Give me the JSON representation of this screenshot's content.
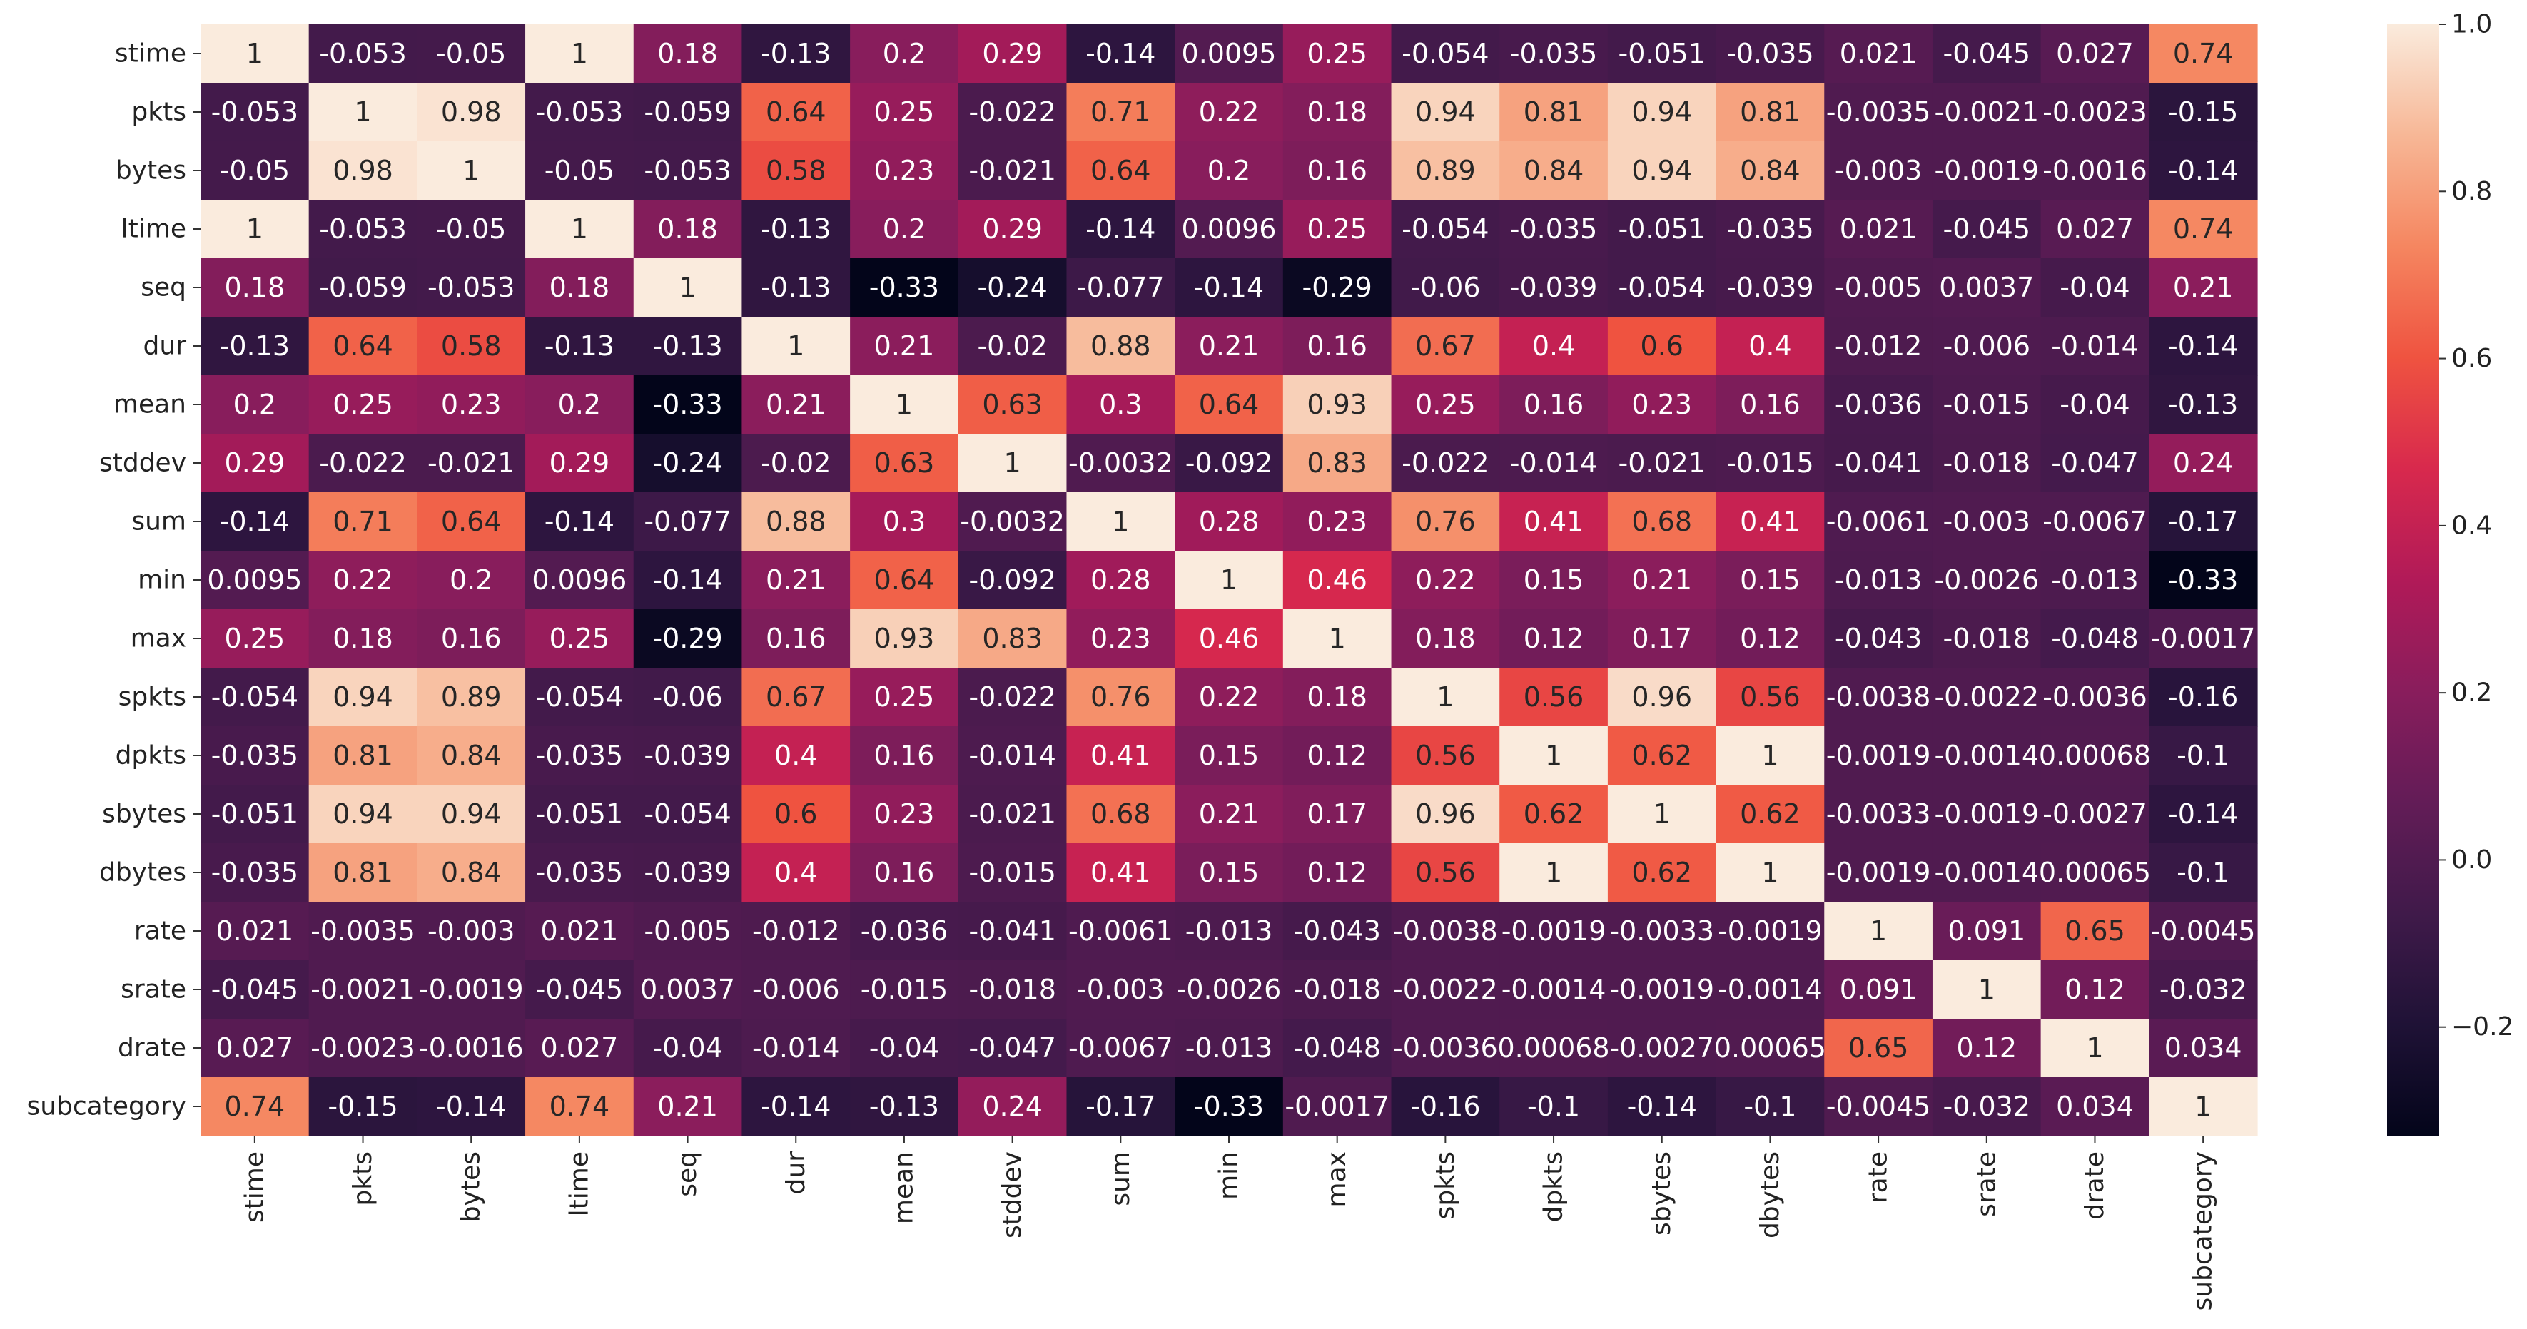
{
  "chart_data": {
    "type": "heatmap",
    "title": "",
    "xlabel": "",
    "ylabel": "",
    "colormap": "rocket",
    "value_range": [
      -0.33,
      1.0
    ],
    "labels": [
      "stime",
      "pkts",
      "bytes",
      "ltime",
      "seq",
      "dur",
      "mean",
      "stddev",
      "sum",
      "min",
      "max",
      "spkts",
      "dpkts",
      "sbytes",
      "dbytes",
      "rate",
      "srate",
      "drate",
      "subcategory"
    ],
    "matrix": [
      [
        "1",
        "-0.053",
        "-0.05",
        "1",
        "0.18",
        "-0.13",
        "0.2",
        "0.29",
        "-0.14",
        "0.0095",
        "0.25",
        "-0.054",
        "-0.035",
        "-0.051",
        "-0.035",
        "0.021",
        "-0.045",
        "0.027",
        "0.74"
      ],
      [
        "-0.053",
        "1",
        "0.98",
        "-0.053",
        "-0.059",
        "0.64",
        "0.25",
        "-0.022",
        "0.71",
        "0.22",
        "0.18",
        "0.94",
        "0.81",
        "0.94",
        "0.81",
        "-0.0035",
        "-0.0021",
        "-0.0023",
        "-0.15"
      ],
      [
        "-0.05",
        "0.98",
        "1",
        "-0.05",
        "-0.053",
        "0.58",
        "0.23",
        "-0.021",
        "0.64",
        "0.2",
        "0.16",
        "0.89",
        "0.84",
        "0.94",
        "0.84",
        "-0.003",
        "-0.0019",
        "-0.0016",
        "-0.14"
      ],
      [
        "1",
        "-0.053",
        "-0.05",
        "1",
        "0.18",
        "-0.13",
        "0.2",
        "0.29",
        "-0.14",
        "0.0096",
        "0.25",
        "-0.054",
        "-0.035",
        "-0.051",
        "-0.035",
        "0.021",
        "-0.045",
        "0.027",
        "0.74"
      ],
      [
        "0.18",
        "-0.059",
        "-0.053",
        "0.18",
        "1",
        "-0.13",
        "-0.33",
        "-0.24",
        "-0.077",
        "-0.14",
        "-0.29",
        "-0.06",
        "-0.039",
        "-0.054",
        "-0.039",
        "-0.005",
        "0.0037",
        "-0.04",
        "0.21"
      ],
      [
        "-0.13",
        "0.64",
        "0.58",
        "-0.13",
        "-0.13",
        "1",
        "0.21",
        "-0.02",
        "0.88",
        "0.21",
        "0.16",
        "0.67",
        "0.4",
        "0.6",
        "0.4",
        "-0.012",
        "-0.006",
        "-0.014",
        "-0.14"
      ],
      [
        "0.2",
        "0.25",
        "0.23",
        "0.2",
        "-0.33",
        "0.21",
        "1",
        "0.63",
        "0.3",
        "0.64",
        "0.93",
        "0.25",
        "0.16",
        "0.23",
        "0.16",
        "-0.036",
        "-0.015",
        "-0.04",
        "-0.13"
      ],
      [
        "0.29",
        "-0.022",
        "-0.021",
        "0.29",
        "-0.24",
        "-0.02",
        "0.63",
        "1",
        "-0.0032",
        "-0.092",
        "0.83",
        "-0.022",
        "-0.014",
        "-0.021",
        "-0.015",
        "-0.041",
        "-0.018",
        "-0.047",
        "0.24"
      ],
      [
        "-0.14",
        "0.71",
        "0.64",
        "-0.14",
        "-0.077",
        "0.88",
        "0.3",
        "-0.0032",
        "1",
        "0.28",
        "0.23",
        "0.76",
        "0.41",
        "0.68",
        "0.41",
        "-0.0061",
        "-0.003",
        "-0.0067",
        "-0.17"
      ],
      [
        "0.0095",
        "0.22",
        "0.2",
        "0.0096",
        "-0.14",
        "0.21",
        "0.64",
        "-0.092",
        "0.28",
        "1",
        "0.46",
        "0.22",
        "0.15",
        "0.21",
        "0.15",
        "-0.013",
        "-0.0026",
        "-0.013",
        "-0.33"
      ],
      [
        "0.25",
        "0.18",
        "0.16",
        "0.25",
        "-0.29",
        "0.16",
        "0.93",
        "0.83",
        "0.23",
        "0.46",
        "1",
        "0.18",
        "0.12",
        "0.17",
        "0.12",
        "-0.043",
        "-0.018",
        "-0.048",
        "-0.0017"
      ],
      [
        "-0.054",
        "0.94",
        "0.89",
        "-0.054",
        "-0.06",
        "0.67",
        "0.25",
        "-0.022",
        "0.76",
        "0.22",
        "0.18",
        "1",
        "0.56",
        "0.96",
        "0.56",
        "-0.0038",
        "-0.0022",
        "-0.0036",
        "-0.16"
      ],
      [
        "-0.035",
        "0.81",
        "0.84",
        "-0.035",
        "-0.039",
        "0.4",
        "0.16",
        "-0.014",
        "0.41",
        "0.15",
        "0.12",
        "0.56",
        "1",
        "0.62",
        "1",
        "-0.0019",
        "-0.0014",
        "0.00068",
        "-0.1"
      ],
      [
        "-0.051",
        "0.94",
        "0.94",
        "-0.051",
        "-0.054",
        "0.6",
        "0.23",
        "-0.021",
        "0.68",
        "0.21",
        "0.17",
        "0.96",
        "0.62",
        "1",
        "0.62",
        "-0.0033",
        "-0.0019",
        "-0.0027",
        "-0.14"
      ],
      [
        "-0.035",
        "0.81",
        "0.84",
        "-0.035",
        "-0.039",
        "0.4",
        "0.16",
        "-0.015",
        "0.41",
        "0.15",
        "0.12",
        "0.56",
        "1",
        "0.62",
        "1",
        "-0.0019",
        "-0.0014",
        "0.00065",
        "-0.1"
      ],
      [
        "0.021",
        "-0.0035",
        "-0.003",
        "0.021",
        "-0.005",
        "-0.012",
        "-0.036",
        "-0.041",
        "-0.0061",
        "-0.013",
        "-0.043",
        "-0.0038",
        "-0.0019",
        "-0.0033",
        "-0.0019",
        "1",
        "0.091",
        "0.65",
        "-0.0045"
      ],
      [
        "-0.045",
        "-0.0021",
        "-0.0019",
        "-0.045",
        "0.0037",
        "-0.006",
        "-0.015",
        "-0.018",
        "-0.003",
        "-0.0026",
        "-0.018",
        "-0.0022",
        "-0.0014",
        "-0.0019",
        "-0.0014",
        "0.091",
        "1",
        "0.12",
        "-0.032"
      ],
      [
        "0.027",
        "-0.0023",
        "-0.0016",
        "0.027",
        "-0.04",
        "-0.014",
        "-0.04",
        "-0.047",
        "-0.0067",
        "-0.013",
        "-0.048",
        "-0.0036",
        "0.00068",
        "-0.0027",
        "0.00065",
        "0.65",
        "0.12",
        "1",
        "0.034"
      ],
      [
        "0.74",
        "-0.15",
        "-0.14",
        "0.74",
        "0.21",
        "-0.14",
        "-0.13",
        "0.24",
        "-0.17",
        "-0.33",
        "-0.0017",
        "-0.16",
        "-0.1",
        "-0.14",
        "-0.1",
        "-0.0045",
        "-0.032",
        "0.034",
        "1"
      ]
    ],
    "colorbar": {
      "ticks": [
        "1.0",
        "0.8",
        "0.6",
        "0.4",
        "0.2",
        "0.0",
        "−0.2"
      ],
      "tick_values": [
        1.0,
        0.8,
        0.6,
        0.4,
        0.2,
        0.0,
        -0.2
      ]
    }
  }
}
